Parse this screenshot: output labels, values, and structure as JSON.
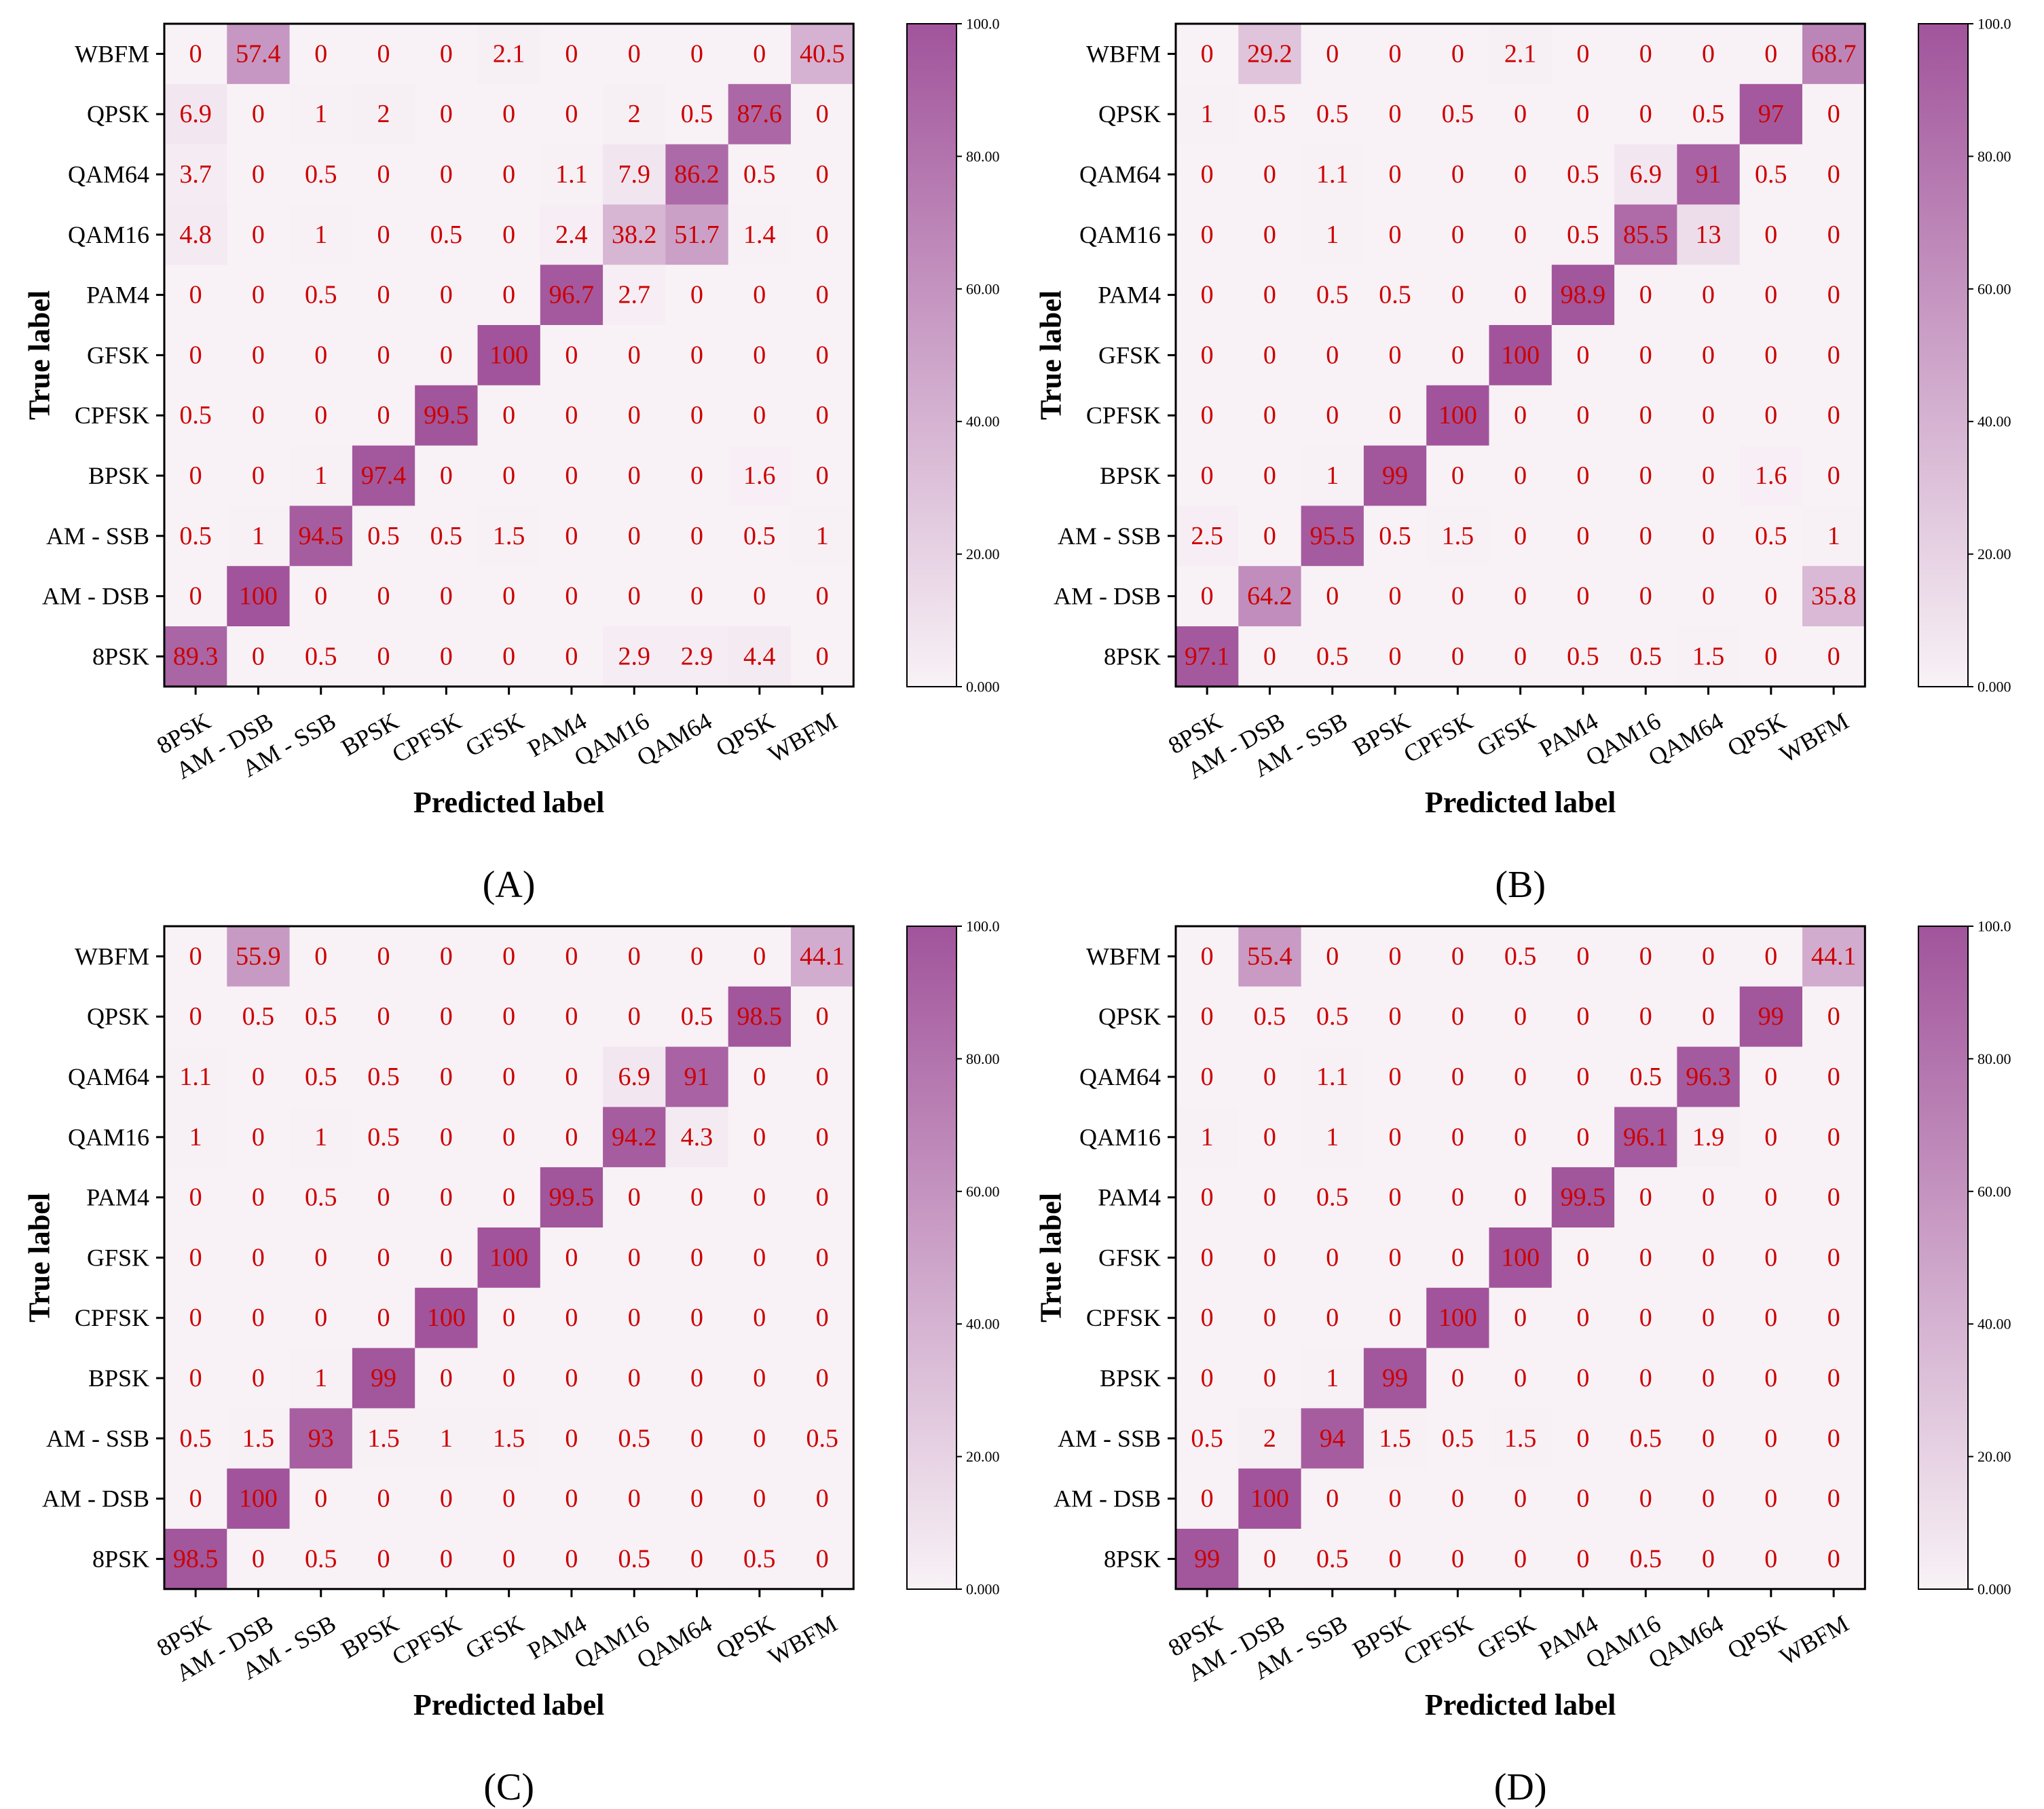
{
  "figure": {
    "panels": [
      "(A)",
      "(B)",
      "(C)",
      "(D)"
    ]
  },
  "colors": {
    "cell_low": "#f8f2f6",
    "cell_high": "#a1549b",
    "value_text": "#cc0000",
    "axis": "#000000"
  },
  "chart_data": [
    {
      "type": "heatmap",
      "panel": "(A)",
      "xlabel": "Predicted label",
      "ylabel": "True label",
      "x_categories": [
        "8PSK",
        "AM - DSB",
        "AM - SSB",
        "BPSK",
        "CPFSK",
        "GFSK",
        "PAM4",
        "QAM16",
        "QAM64",
        "QPSK",
        "WBFM"
      ],
      "y_categories_top_to_bottom": [
        "WBFM",
        "QPSK",
        "QAM64",
        "QAM16",
        "PAM4",
        "GFSK",
        "CPFSK",
        "BPSK",
        "AM - SSB",
        "AM - DSB",
        "8PSK"
      ],
      "values": [
        [
          "0",
          "57.4",
          "0",
          "0",
          "0",
          "2.1",
          "0",
          "0",
          "0",
          "0",
          "40.5"
        ],
        [
          "6.9",
          "0",
          "1",
          "2",
          "0",
          "0",
          "0",
          "2",
          "0.5",
          "87.6",
          "0"
        ],
        [
          "3.7",
          "0",
          "0.5",
          "0",
          "0",
          "0",
          "1.1",
          "7.9",
          "86.2",
          "0.5",
          "0"
        ],
        [
          "4.8",
          "0",
          "1",
          "0",
          "0.5",
          "0",
          "2.4",
          "38.2",
          "51.7",
          "1.4",
          "0"
        ],
        [
          "0",
          "0",
          "0.5",
          "0",
          "0",
          "0",
          "96.7",
          "2.7",
          "0",
          "0",
          "0"
        ],
        [
          "0",
          "0",
          "0",
          "0",
          "0",
          "100",
          "0",
          "0",
          "0",
          "0",
          "0"
        ],
        [
          "0.5",
          "0",
          "0",
          "0",
          "99.5",
          "0",
          "0",
          "0",
          "0",
          "0",
          "0"
        ],
        [
          "0",
          "0",
          "1",
          "97.4",
          "0",
          "0",
          "0",
          "0",
          "0",
          "1.6",
          "0"
        ],
        [
          "0.5",
          "1",
          "94.5",
          "0.5",
          "0.5",
          "1.5",
          "0",
          "0",
          "0",
          "0.5",
          "1"
        ],
        [
          "0",
          "100",
          "0",
          "0",
          "0",
          "0",
          "0",
          "0",
          "0",
          "0",
          "0"
        ],
        [
          "89.3",
          "0",
          "0.5",
          "0",
          "0",
          "0",
          "0",
          "2.9",
          "2.9",
          "4.4",
          "0"
        ]
      ],
      "colorbar": {
        "range": [
          0,
          100
        ],
        "ticks": [
          "0.000",
          "20.00",
          "40.00",
          "60.00",
          "80.00",
          "100.0"
        ]
      }
    },
    {
      "type": "heatmap",
      "panel": "(B)",
      "xlabel": "Predicted label",
      "ylabel": "True label",
      "x_categories": [
        "8PSK",
        "AM - DSB",
        "AM - SSB",
        "BPSK",
        "CPFSK",
        "GFSK",
        "PAM4",
        "QAM16",
        "QAM64",
        "QPSK",
        "WBFM"
      ],
      "y_categories_top_to_bottom": [
        "WBFM",
        "QPSK",
        "QAM64",
        "QAM16",
        "PAM4",
        "GFSK",
        "CPFSK",
        "BPSK",
        "AM - SSB",
        "AM - DSB",
        "8PSK"
      ],
      "values": [
        [
          "0",
          "29.2",
          "0",
          "0",
          "0",
          "2.1",
          "0",
          "0",
          "0",
          "0",
          "68.7"
        ],
        [
          "1",
          "0.5",
          "0.5",
          "0",
          "0.5",
          "0",
          "0",
          "0",
          "0.5",
          "97",
          "0"
        ],
        [
          "0",
          "0",
          "1.1",
          "0",
          "0",
          "0",
          "0.5",
          "6.9",
          "91",
          "0.5",
          "0"
        ],
        [
          "0",
          "0",
          "1",
          "0",
          "0",
          "0",
          "0.5",
          "85.5",
          "13",
          "0",
          "0"
        ],
        [
          "0",
          "0",
          "0.5",
          "0.5",
          "0",
          "0",
          "98.9",
          "0",
          "0",
          "0",
          "0"
        ],
        [
          "0",
          "0",
          "0",
          "0",
          "0",
          "100",
          "0",
          "0",
          "0",
          "0",
          "0"
        ],
        [
          "0",
          "0",
          "0",
          "0",
          "100",
          "0",
          "0",
          "0",
          "0",
          "0",
          "0"
        ],
        [
          "0",
          "0",
          "1",
          "99",
          "0",
          "0",
          "0",
          "0",
          "0",
          "1.6",
          "0"
        ],
        [
          "2.5",
          "0",
          "95.5",
          "0.5",
          "1.5",
          "0",
          "0",
          "0",
          "0",
          "0.5",
          "1"
        ],
        [
          "0",
          "64.2",
          "0",
          "0",
          "0",
          "0",
          "0",
          "0",
          "0",
          "0",
          "35.8"
        ],
        [
          "97.1",
          "0",
          "0.5",
          "0",
          "0",
          "0",
          "0.5",
          "0.5",
          "1.5",
          "0",
          "0"
        ]
      ],
      "colorbar": {
        "range": [
          0,
          100
        ],
        "ticks": [
          "0.000",
          "20.00",
          "40.00",
          "60.00",
          "80.00",
          "100.0"
        ]
      }
    },
    {
      "type": "heatmap",
      "panel": "(C)",
      "xlabel": "Predicted label",
      "ylabel": "True label",
      "x_categories": [
        "8PSK",
        "AM - DSB",
        "AM - SSB",
        "BPSK",
        "CPFSK",
        "GFSK",
        "PAM4",
        "QAM16",
        "QAM64",
        "QPSK",
        "WBFM"
      ],
      "y_categories_top_to_bottom": [
        "WBFM",
        "QPSK",
        "QAM64",
        "QAM16",
        "PAM4",
        "GFSK",
        "CPFSK",
        "BPSK",
        "AM - SSB",
        "AM - DSB",
        "8PSK"
      ],
      "values": [
        [
          "0",
          "55.9",
          "0",
          "0",
          "0",
          "0",
          "0",
          "0",
          "0",
          "0",
          "44.1"
        ],
        [
          "0",
          "0.5",
          "0.5",
          "0",
          "0",
          "0",
          "0",
          "0",
          "0.5",
          "98.5",
          "0"
        ],
        [
          "1.1",
          "0",
          "0.5",
          "0.5",
          "0",
          "0",
          "0",
          "6.9",
          "91",
          "0",
          "0"
        ],
        [
          "1",
          "0",
          "1",
          "0.5",
          "0",
          "0",
          "0",
          "94.2",
          "4.3",
          "0",
          "0"
        ],
        [
          "0",
          "0",
          "0.5",
          "0",
          "0",
          "0",
          "99.5",
          "0",
          "0",
          "0",
          "0"
        ],
        [
          "0",
          "0",
          "0",
          "0",
          "0",
          "100",
          "0",
          "0",
          "0",
          "0",
          "0"
        ],
        [
          "0",
          "0",
          "0",
          "0",
          "100",
          "0",
          "0",
          "0",
          "0",
          "0",
          "0"
        ],
        [
          "0",
          "0",
          "1",
          "99",
          "0",
          "0",
          "0",
          "0",
          "0",
          "0",
          "0"
        ],
        [
          "0.5",
          "1.5",
          "93",
          "1.5",
          "1",
          "1.5",
          "0",
          "0.5",
          "0",
          "0",
          "0.5"
        ],
        [
          "0",
          "100",
          "0",
          "0",
          "0",
          "0",
          "0",
          "0",
          "0",
          "0",
          "0"
        ],
        [
          "98.5",
          "0",
          "0.5",
          "0",
          "0",
          "0",
          "0",
          "0.5",
          "0",
          "0.5",
          "0"
        ]
      ],
      "colorbar": {
        "range": [
          0,
          100
        ],
        "ticks": [
          "0.000",
          "20.00",
          "40.00",
          "60.00",
          "80.00",
          "100.0"
        ]
      }
    },
    {
      "type": "heatmap",
      "panel": "(D)",
      "xlabel": "Predicted label",
      "ylabel": "True label",
      "x_categories": [
        "8PSK",
        "AM - DSB",
        "AM - SSB",
        "BPSK",
        "CPFSK",
        "GFSK",
        "PAM4",
        "QAM16",
        "QAM64",
        "QPSK",
        "WBFM"
      ],
      "y_categories_top_to_bottom": [
        "WBFM",
        "QPSK",
        "QAM64",
        "QAM16",
        "PAM4",
        "GFSK",
        "CPFSK",
        "BPSK",
        "AM - SSB",
        "AM - DSB",
        "8PSK"
      ],
      "values": [
        [
          "0",
          "55.4",
          "0",
          "0",
          "0",
          "0.5",
          "0",
          "0",
          "0",
          "0",
          "44.1"
        ],
        [
          "0",
          "0.5",
          "0.5",
          "0",
          "0",
          "0",
          "0",
          "0",
          "0",
          "99",
          "0"
        ],
        [
          "0",
          "0",
          "1.1",
          "0",
          "0",
          "0",
          "0",
          "0.5",
          "96.3",
          "0",
          "0"
        ],
        [
          "1",
          "0",
          "1",
          "0",
          "0",
          "0",
          "0",
          "96.1",
          "1.9",
          "0",
          "0"
        ],
        [
          "0",
          "0",
          "0.5",
          "0",
          "0",
          "0",
          "99.5",
          "0",
          "0",
          "0",
          "0"
        ],
        [
          "0",
          "0",
          "0",
          "0",
          "0",
          "100",
          "0",
          "0",
          "0",
          "0",
          "0"
        ],
        [
          "0",
          "0",
          "0",
          "0",
          "100",
          "0",
          "0",
          "0",
          "0",
          "0",
          "0"
        ],
        [
          "0",
          "0",
          "1",
          "99",
          "0",
          "0",
          "0",
          "0",
          "0",
          "0",
          "0"
        ],
        [
          "0.5",
          "2",
          "94",
          "1.5",
          "0.5",
          "1.5",
          "0",
          "0.5",
          "0",
          "0",
          "0"
        ],
        [
          "0",
          "100",
          "0",
          "0",
          "0",
          "0",
          "0",
          "0",
          "0",
          "0",
          "0"
        ],
        [
          "99",
          "0",
          "0.5",
          "0",
          "0",
          "0",
          "0",
          "0.5",
          "0",
          "0",
          "0"
        ]
      ],
      "colorbar": {
        "range": [
          0,
          100
        ],
        "ticks": [
          "0.000",
          "20.00",
          "40.00",
          "60.00",
          "80.00",
          "100.0"
        ]
      }
    }
  ]
}
